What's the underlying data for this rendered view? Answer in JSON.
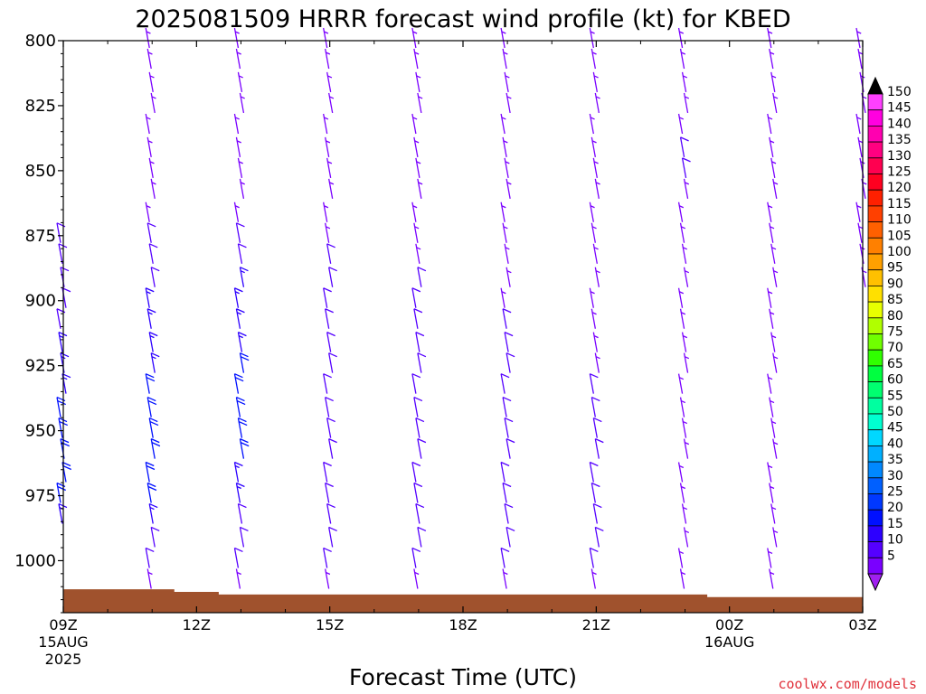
{
  "chart_data": {
    "type": "wind-barb-profile",
    "title": "2025081509 HRRR forecast wind profile (kt) for KBED",
    "xlabel": "Forecast Time (UTC)",
    "credit": "coolwx.com/models",
    "y_axis": {
      "unit": "hPa",
      "range": [
        800,
        1020
      ],
      "ticks": [
        "800",
        "825",
        "850",
        "875",
        "900",
        "925",
        "950",
        "975",
        "1000"
      ]
    },
    "x_axis": {
      "range_hours_from_09Z": [
        0,
        18
      ],
      "ticks": [
        {
          "h": 0,
          "label": "09Z",
          "line2": "15AUG",
          "line3": "2025"
        },
        {
          "h": 3,
          "label": "12Z",
          "line2": "",
          "line3": ""
        },
        {
          "h": 6,
          "label": "15Z",
          "line2": "",
          "line3": ""
        },
        {
          "h": 9,
          "label": "18Z",
          "line2": "",
          "line3": ""
        },
        {
          "h": 12,
          "label": "21Z",
          "line2": "",
          "line3": ""
        },
        {
          "h": 15,
          "label": "00Z",
          "line2": "16AUG",
          "line3": ""
        },
        {
          "h": 18,
          "label": "03Z",
          "line2": "",
          "line3": ""
        }
      ]
    },
    "colorbar": {
      "levels": [
        "5",
        "10",
        "15",
        "20",
        "25",
        "30",
        "35",
        "40",
        "45",
        "50",
        "55",
        "60",
        "65",
        "70",
        "75",
        "80",
        "85",
        "90",
        "95",
        "100",
        "105",
        "110",
        "115",
        "120",
        "125",
        "130",
        "135",
        "140",
        "145",
        "150"
      ],
      "colors": [
        "#7a00ff",
        "#5500ff",
        "#2d00ff",
        "#0010ff",
        "#0038ff",
        "#0060ff",
        "#0088ff",
        "#00b0ff",
        "#00d8ff",
        "#00ffd0",
        "#00ffa0",
        "#00ff70",
        "#00ff40",
        "#30ff00",
        "#70ff00",
        "#b0ff00",
        "#e8ff00",
        "#ffe000",
        "#ffc000",
        "#ffa000",
        "#ff8000",
        "#ff6000",
        "#ff4000",
        "#ff2000",
        "#ff0020",
        "#ff0050",
        "#ff0080",
        "#ff00b0",
        "#ff00e0",
        "#ff40ff"
      ],
      "underflow_color": "#a020f0",
      "overflow_color": "#000000"
    },
    "terrain": {
      "color": "#a0522d",
      "surface_pressure": [
        {
          "h": 0,
          "p": 1011
        },
        {
          "h": 2.5,
          "p": 1012
        },
        {
          "h": 3.5,
          "p": 1013
        },
        {
          "h": 14.5,
          "p": 1014
        },
        {
          "h": 18,
          "p": 1014
        }
      ]
    },
    "levels_hpa": [
      800,
      808,
      817,
      825,
      833,
      842,
      850,
      858,
      867,
      875,
      883,
      892,
      900,
      908,
      917,
      925,
      933,
      942,
      950,
      958,
      967,
      975,
      983,
      992,
      1000,
      1008
    ],
    "columns": [
      {
        "h": 0,
        "pmin": 875,
        "speeds": [
          10,
          10,
          10,
          10,
          10,
          15,
          15,
          15,
          20,
          20,
          20,
          20,
          20,
          15
        ]
      },
      {
        "h": 2,
        "pmin": 800,
        "speeds": [
          5,
          5,
          5,
          5,
          5,
          5,
          5,
          5,
          5,
          10,
          10,
          10,
          15,
          15,
          15,
          15,
          20,
          20,
          20,
          20,
          20,
          20,
          15,
          10,
          10,
          5
        ]
      },
      {
        "h": 4,
        "pmin": 800,
        "speeds": [
          5,
          5,
          5,
          5,
          5,
          5,
          5,
          5,
          5,
          10,
          10,
          15,
          15,
          15,
          15,
          20,
          20,
          20,
          20,
          20,
          15,
          15,
          10,
          10,
          10,
          5
        ]
      },
      {
        "h": 6,
        "pmin": 800,
        "speeds": [
          5,
          5,
          5,
          5,
          5,
          5,
          5,
          5,
          5,
          5,
          10,
          10,
          10,
          10,
          10,
          10,
          10,
          10,
          10,
          10,
          10,
          10,
          10,
          10,
          10,
          5
        ]
      },
      {
        "h": 8,
        "pmin": 800,
        "speeds": [
          5,
          5,
          5,
          5,
          5,
          5,
          5,
          5,
          5,
          5,
          5,
          10,
          10,
          10,
          10,
          10,
          10,
          10,
          10,
          10,
          10,
          10,
          10,
          10,
          10,
          5
        ]
      },
      {
        "h": 10,
        "pmin": 800,
        "speeds": [
          5,
          5,
          5,
          5,
          5,
          5,
          5,
          5,
          5,
          5,
          5,
          5,
          5,
          10,
          10,
          10,
          10,
          10,
          10,
          10,
          10,
          10,
          10,
          10,
          10,
          5
        ]
      },
      {
        "h": 12,
        "pmin": 800,
        "speeds": [
          5,
          5,
          5,
          5,
          5,
          5,
          5,
          5,
          5,
          5,
          5,
          5,
          5,
          5,
          5,
          5,
          10,
          10,
          10,
          10,
          10,
          10,
          10,
          10,
          10,
          5
        ]
      },
      {
        "h": 14,
        "pmin": 800,
        "speeds": [
          5,
          5,
          5,
          5,
          5,
          10,
          10,
          5,
          5,
          5,
          5,
          5,
          5,
          5,
          5,
          5,
          5,
          5,
          5,
          5,
          5,
          5,
          5,
          5,
          5,
          5
        ]
      },
      {
        "h": 16,
        "pmin": 800,
        "speeds": [
          5,
          5,
          5,
          5,
          5,
          5,
          5,
          5,
          5,
          5,
          5,
          5,
          5,
          5,
          5,
          5,
          5,
          5,
          5,
          5,
          5,
          5,
          5,
          5,
          5,
          5
        ]
      },
      {
        "h": 18,
        "pmin": 800,
        "speeds": [
          5,
          5,
          5,
          5,
          5,
          5,
          5,
          5,
          5,
          5,
          5,
          5
        ]
      }
    ]
  }
}
